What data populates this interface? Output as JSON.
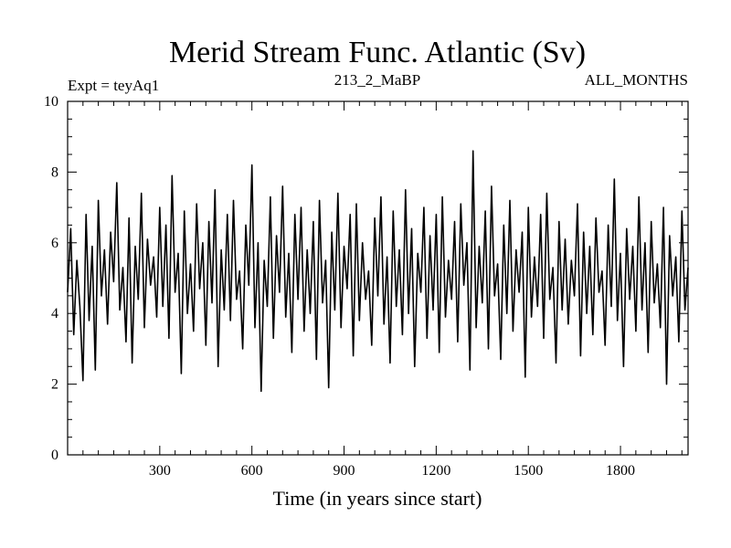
{
  "chart_data": {
    "type": "line",
    "title": "Merid Stream Func. Atlantic (Sv)",
    "subtitle_left": "Expt = teyAq1",
    "subtitle_center": "213_2_MaBP",
    "subtitle_right": "ALL_MONTHS",
    "xlabel": "Time (in years since start)",
    "ylabel": "",
    "xlim": [
      0,
      2020
    ],
    "ylim": [
      0,
      10
    ],
    "x_ticks": [
      300,
      600,
      900,
      1200,
      1500,
      1800
    ],
    "y_ticks": [
      0,
      2,
      4,
      6,
      8,
      10
    ],
    "grid": false,
    "line_color": "#000000",
    "series": [
      {
        "name": "",
        "x": [
          0,
          10,
          20,
          30,
          40,
          50,
          60,
          70,
          80,
          90,
          100,
          110,
          120,
          130,
          140,
          150,
          160,
          170,
          180,
          190,
          200,
          210,
          220,
          230,
          240,
          250,
          260,
          270,
          280,
          290,
          300,
          310,
          320,
          330,
          340,
          350,
          360,
          370,
          380,
          390,
          400,
          410,
          420,
          430,
          440,
          450,
          460,
          470,
          480,
          490,
          500,
          510,
          520,
          530,
          540,
          550,
          560,
          570,
          580,
          590,
          600,
          610,
          620,
          630,
          640,
          650,
          660,
          670,
          680,
          690,
          700,
          710,
          720,
          730,
          740,
          750,
          760,
          770,
          780,
          790,
          800,
          810,
          820,
          830,
          840,
          850,
          860,
          870,
          880,
          890,
          900,
          910,
          920,
          930,
          940,
          950,
          960,
          970,
          980,
          990,
          1000,
          1010,
          1020,
          1030,
          1040,
          1050,
          1060,
          1070,
          1080,
          1090,
          1100,
          1110,
          1120,
          1130,
          1140,
          1150,
          1160,
          1170,
          1180,
          1190,
          1200,
          1210,
          1220,
          1230,
          1240,
          1250,
          1260,
          1270,
          1280,
          1290,
          1300,
          1310,
          1320,
          1330,
          1340,
          1350,
          1360,
          1370,
          1380,
          1390,
          1400,
          1410,
          1420,
          1430,
          1440,
          1450,
          1460,
          1470,
          1480,
          1490,
          1500,
          1510,
          1520,
          1530,
          1540,
          1550,
          1560,
          1570,
          1580,
          1590,
          1600,
          1610,
          1620,
          1630,
          1640,
          1650,
          1660,
          1670,
          1680,
          1690,
          1700,
          1710,
          1720,
          1730,
          1740,
          1750,
          1760,
          1770,
          1780,
          1790,
          1800,
          1810,
          1820,
          1830,
          1840,
          1850,
          1860,
          1870,
          1880,
          1890,
          1900,
          1910,
          1920,
          1930,
          1940,
          1950,
          1960,
          1970,
          1980,
          1990,
          2000,
          2010,
          2020
        ],
        "values": [
          4.6,
          6.4,
          3.4,
          5.5,
          4.2,
          2.1,
          6.8,
          3.8,
          5.9,
          2.4,
          7.2,
          4.5,
          5.8,
          3.7,
          6.3,
          4.9,
          7.7,
          4.1,
          5.3,
          3.2,
          6.7,
          2.6,
          5.9,
          4.4,
          7.4,
          3.6,
          6.1,
          4.8,
          5.6,
          3.9,
          7.0,
          4.2,
          6.5,
          3.3,
          7.9,
          4.6,
          5.7,
          2.3,
          6.9,
          4.0,
          5.4,
          3.5,
          7.1,
          4.7,
          6.0,
          3.1,
          6.6,
          4.3,
          7.5,
          2.5,
          5.8,
          4.1,
          6.8,
          3.8,
          7.2,
          4.4,
          5.2,
          3.0,
          6.5,
          4.8,
          8.2,
          3.6,
          6.0,
          1.8,
          5.5,
          4.2,
          7.3,
          3.3,
          6.2,
          4.6,
          7.6,
          3.9,
          5.7,
          2.9,
          6.8,
          4.4,
          7.0,
          3.5,
          5.8,
          4.0,
          6.6,
          2.7,
          7.2,
          4.3,
          5.5,
          1.9,
          6.3,
          4.1,
          7.4,
          3.6,
          5.9,
          4.7,
          6.8,
          2.8,
          7.1,
          3.8,
          6.0,
          4.4,
          5.2,
          3.1,
          6.7,
          4.5,
          7.3,
          3.7,
          5.6,
          2.6,
          6.9,
          4.2,
          5.8,
          3.4,
          7.5,
          4.0,
          6.4,
          2.5,
          5.7,
          4.6,
          7.0,
          3.3,
          6.2,
          4.1,
          6.8,
          2.9,
          7.3,
          3.9,
          5.5,
          4.4,
          6.6,
          3.2,
          7.1,
          4.8,
          6.0,
          2.4,
          8.6,
          3.6,
          5.9,
          4.3,
          6.9,
          3.0,
          7.6,
          4.5,
          5.4,
          2.7,
          6.5,
          4.0,
          7.2,
          3.5,
          5.8,
          4.6,
          6.3,
          2.2,
          7.0,
          3.9,
          5.6,
          4.2,
          6.8,
          3.3,
          7.4,
          4.4,
          5.3,
          2.6,
          6.6,
          4.1,
          6.1,
          3.7,
          5.5,
          4.5,
          7.1,
          2.8,
          6.3,
          4.0,
          5.9,
          3.4,
          6.7,
          4.6,
          5.2,
          3.1,
          6.5,
          4.2,
          7.8,
          3.8,
          5.7,
          2.5,
          6.4,
          4.4,
          5.9,
          3.5,
          7.3,
          4.1,
          6.0,
          2.9,
          6.6,
          4.3,
          5.4,
          3.6,
          7.0,
          2.0,
          6.2,
          4.5,
          5.6,
          3.2,
          6.9,
          4.1,
          5.3
        ]
      }
    ]
  }
}
